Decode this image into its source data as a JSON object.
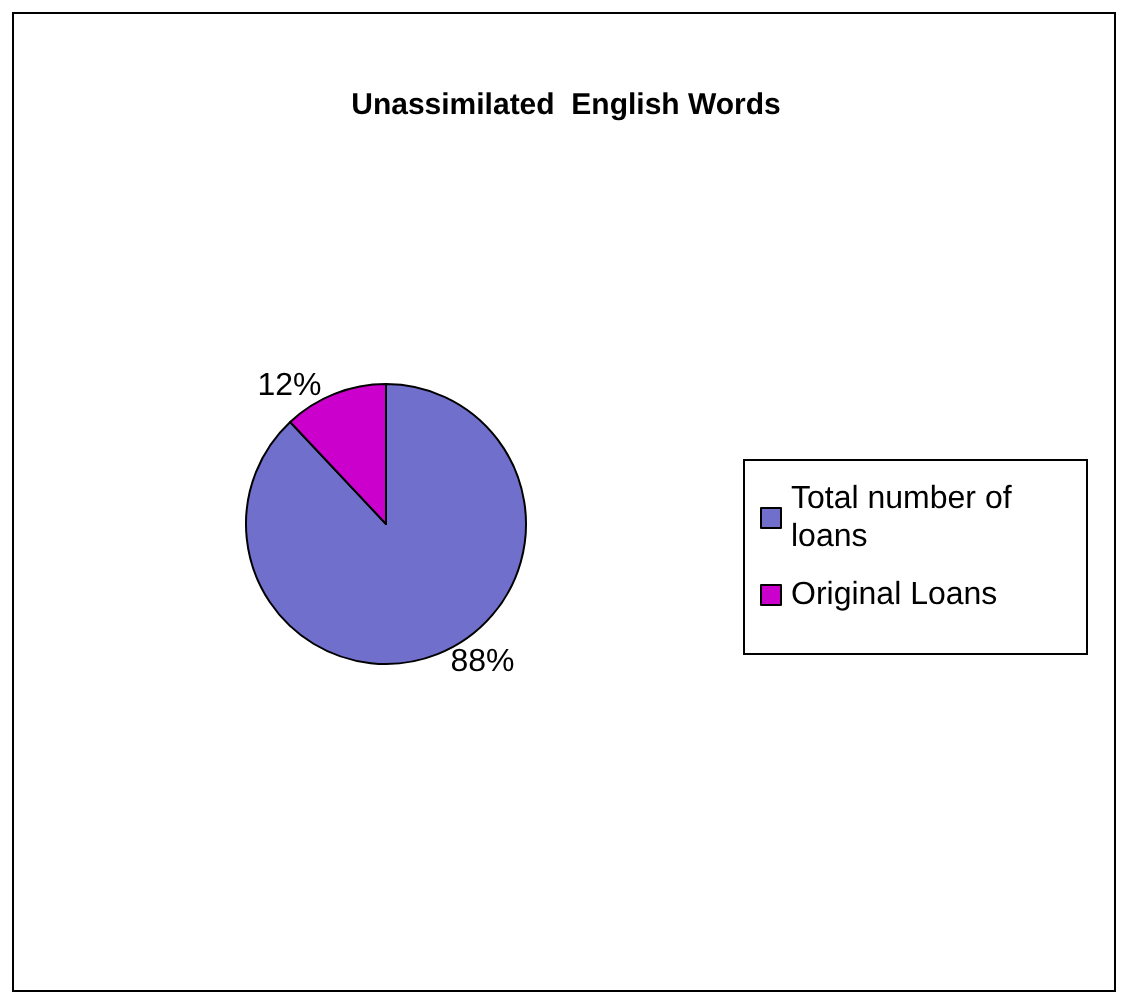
{
  "chart_data": {
    "type": "pie",
    "title": "Unassimilated  English Words",
    "categories": [
      "Total number of loans",
      "Original Loans"
    ],
    "values": [
      88,
      12
    ],
    "value_labels": [
      "88%",
      "12%"
    ],
    "colors": [
      "#7070cc",
      "#cc00cc"
    ],
    "legend": "right"
  }
}
